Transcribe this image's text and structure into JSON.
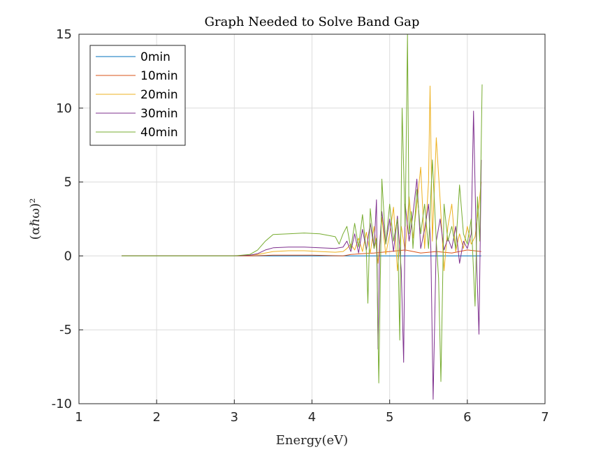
{
  "chart_data": {
    "type": "line",
    "title": "Graph Needed to Solve Band Gap",
    "xlabel": "Energy(eV)",
    "ylabel": "(αℏω)²",
    "xlim": [
      1,
      7
    ],
    "ylim": [
      -10,
      15
    ],
    "xticks": [
      1,
      2,
      3,
      4,
      5,
      6,
      7
    ],
    "xtick_labels": [
      "1",
      "2",
      "3",
      "4",
      "5",
      "6",
      "7"
    ],
    "yticks": [
      -10,
      -5,
      0,
      5,
      10,
      15
    ],
    "ytick_labels": [
      "-10",
      "-5",
      "0",
      "5",
      "10",
      "15"
    ],
    "grid": true,
    "legend_position": "top-left",
    "series": [
      {
        "name": "0min",
        "color": "#0072BD",
        "x": [
          1.55,
          2.0,
          2.5,
          3.0,
          3.5,
          4.0,
          4.5,
          5.0,
          5.5,
          6.0,
          6.18
        ],
        "y": [
          0,
          0,
          0,
          0,
          0,
          0,
          0,
          0,
          0,
          0,
          0
        ]
      },
      {
        "name": "10min",
        "color": "#D95319",
        "x": [
          1.55,
          2.0,
          2.5,
          3.0,
          3.2,
          3.3,
          3.5,
          4.0,
          4.4,
          4.5,
          4.8,
          5.0,
          5.2,
          5.4,
          5.6,
          5.8,
          6.0,
          6.18
        ],
        "y": [
          0,
          0,
          0,
          0,
          0,
          0.02,
          0.05,
          0.05,
          0,
          0.1,
          0.2,
          0.3,
          0.4,
          0.2,
          0.3,
          0.2,
          0.4,
          0.3
        ]
      },
      {
        "name": "20min",
        "color": "#EDB120",
        "x": [
          1.55,
          2.0,
          2.5,
          3.0,
          3.2,
          3.3,
          3.4,
          3.5,
          3.7,
          3.9,
          4.1,
          4.3,
          4.4,
          4.45,
          4.5,
          4.55,
          4.6,
          4.65,
          4.7,
          4.75,
          4.8,
          4.85,
          4.9,
          4.95,
          5.0,
          5.05,
          5.1,
          5.15,
          5.2,
          5.25,
          5.3,
          5.35,
          5.4,
          5.45,
          5.5,
          5.52,
          5.55,
          5.6,
          5.65,
          5.7,
          5.75,
          5.8,
          5.85,
          5.9,
          5.95,
          6.0,
          6.05,
          6.1,
          6.15,
          6.18
        ],
        "y": [
          0,
          0,
          0,
          0,
          0.05,
          0.1,
          0.2,
          0.3,
          0.35,
          0.35,
          0.3,
          0.25,
          0.3,
          0.5,
          0.8,
          0.4,
          1.2,
          0.3,
          1.6,
          0.2,
          2.0,
          -0.5,
          2.6,
          0.1,
          1.5,
          3.3,
          -1.0,
          2.0,
          0.3,
          4.0,
          1.2,
          3.5,
          6.0,
          0.5,
          5.0,
          11.5,
          1.0,
          8.0,
          3.8,
          -1.0,
          2.0,
          3.5,
          0.3,
          1.5,
          0.5,
          2.0,
          0.8,
          1.3,
          3.5,
          5.0
        ]
      },
      {
        "name": "30min",
        "color": "#7E2F8E",
        "x": [
          1.55,
          2.0,
          2.5,
          3.0,
          3.2,
          3.3,
          3.4,
          3.5,
          3.7,
          3.9,
          4.1,
          4.3,
          4.4,
          4.45,
          4.5,
          4.55,
          4.6,
          4.65,
          4.7,
          4.75,
          4.8,
          4.83,
          4.85,
          4.87,
          4.9,
          4.95,
          5.0,
          5.05,
          5.1,
          5.15,
          5.18,
          5.2,
          5.25,
          5.3,
          5.35,
          5.4,
          5.45,
          5.5,
          5.53,
          5.56,
          5.6,
          5.65,
          5.7,
          5.75,
          5.8,
          5.85,
          5.9,
          5.95,
          6.0,
          6.05,
          6.08,
          6.12,
          6.15,
          6.18
        ],
        "y": [
          0,
          0,
          0,
          0,
          0.05,
          0.15,
          0.4,
          0.55,
          0.6,
          0.6,
          0.55,
          0.5,
          0.6,
          1.0,
          0.3,
          1.5,
          0.2,
          1.8,
          0.4,
          2.2,
          0.5,
          3.8,
          -6.3,
          0.5,
          3.0,
          0.8,
          2.5,
          0.3,
          2.7,
          -1.0,
          -7.2,
          3.5,
          1.0,
          2.8,
          5.2,
          0.5,
          1.8,
          3.5,
          0.5,
          -9.7,
          1.0,
          2.5,
          0.4,
          1.2,
          0.5,
          2.0,
          -0.5,
          1.0,
          0.5,
          1.5,
          9.8,
          -0.5,
          -5.3,
          6.5
        ]
      },
      {
        "name": "40min",
        "color": "#77AC30",
        "x": [
          1.55,
          2.0,
          2.5,
          3.0,
          3.2,
          3.3,
          3.4,
          3.5,
          3.7,
          3.9,
          4.1,
          4.3,
          4.35,
          4.4,
          4.45,
          4.5,
          4.55,
          4.6,
          4.65,
          4.7,
          4.72,
          4.75,
          4.8,
          4.83,
          4.86,
          4.9,
          4.95,
          5.0,
          5.05,
          5.1,
          5.13,
          5.16,
          5.2,
          5.23,
          5.25,
          5.28,
          5.3,
          5.35,
          5.4,
          5.45,
          5.5,
          5.55,
          5.6,
          5.63,
          5.66,
          5.7,
          5.75,
          5.8,
          5.85,
          5.9,
          5.95,
          6.0,
          6.05,
          6.1,
          6.13,
          6.16,
          6.19
        ],
        "y": [
          0,
          0,
          0,
          0,
          0.1,
          0.4,
          1.0,
          1.45,
          1.5,
          1.55,
          1.5,
          1.3,
          0.8,
          1.5,
          2.0,
          0.5,
          2.2,
          0.6,
          2.8,
          0.3,
          -3.2,
          3.2,
          0.5,
          1.2,
          -8.6,
          5.2,
          0.8,
          3.5,
          1.0,
          2.5,
          -5.7,
          10.0,
          2.0,
          15.0,
          1.5,
          3.0,
          0.5,
          4.5,
          1.5,
          3.5,
          0.5,
          6.5,
          1.0,
          -1.5,
          -8.5,
          3.5,
          1.0,
          2.0,
          0.5,
          4.8,
          1.5,
          0.8,
          2.5,
          -3.4,
          4.0,
          1.0,
          11.6
        ]
      }
    ]
  }
}
